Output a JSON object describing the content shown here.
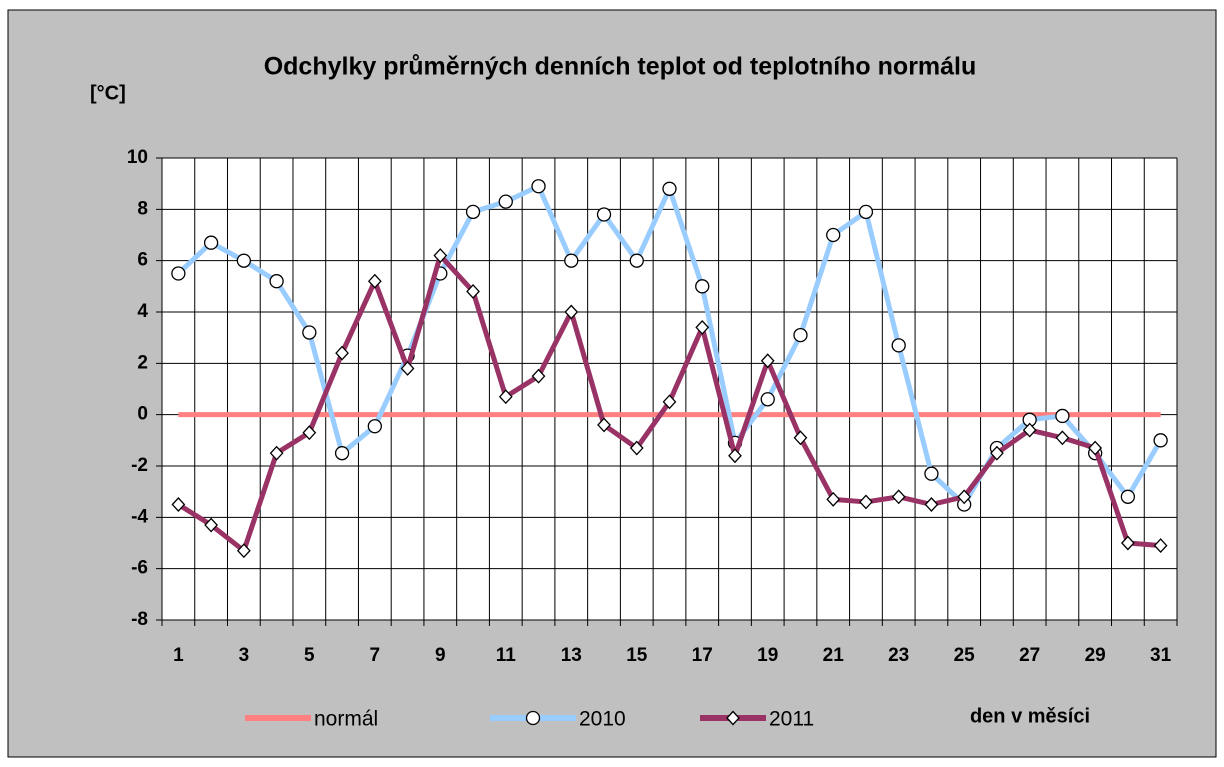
{
  "chart_data": {
    "type": "line",
    "title": "Odchylky průměrných denních teplot od teplotního normálu",
    "y_label": "[°C]",
    "x_label": "den v měsíci",
    "categories": [
      1,
      null,
      3,
      null,
      5,
      null,
      7,
      null,
      9,
      null,
      11,
      null,
      13,
      null,
      15,
      null,
      17,
      null,
      19,
      null,
      21,
      null,
      23,
      null,
      25,
      null,
      27,
      null,
      29,
      null,
      31
    ],
    "series": [
      {
        "name": "normál",
        "color": "#ff8080",
        "marker": null,
        "values": [
          0,
          0,
          0,
          0,
          0,
          0,
          0,
          0,
          0,
          0,
          0,
          0,
          0,
          0,
          0,
          0,
          0,
          0,
          0,
          0,
          0,
          0,
          0,
          0,
          0,
          0,
          0,
          0,
          0,
          0,
          0
        ]
      },
      {
        "name": "2010",
        "color": "#99ccff",
        "marker": "circle",
        "values": [
          5.5,
          6.7,
          6.0,
          5.2,
          3.2,
          -1.5,
          -0.45,
          2.3,
          5.5,
          7.9,
          8.3,
          8.9,
          6.0,
          7.8,
          6.0,
          8.8,
          5.0,
          -1.1,
          0.6,
          3.1,
          7.0,
          7.9,
          2.7,
          -2.3,
          -3.5,
          -1.3,
          -0.2,
          -0.05,
          -1.5,
          -3.2,
          -1.0
        ]
      },
      {
        "name": "2011",
        "color": "#993366",
        "marker": "diamond",
        "values": [
          -3.5,
          -4.3,
          -5.3,
          -1.5,
          -0.7,
          2.4,
          5.2,
          1.8,
          6.2,
          4.8,
          0.7,
          1.5,
          4.0,
          -0.4,
          -1.3,
          0.5,
          3.4,
          -1.6,
          2.1,
          -0.9,
          -3.3,
          -3.4,
          -3.2,
          -3.5,
          -3.2,
          -1.5,
          -0.6,
          -0.9,
          -1.3,
          -5.0,
          -5.1
        ]
      }
    ],
    "ylim": [
      -8,
      10
    ],
    "yticks": [
      -8,
      -6,
      -4,
      -2,
      0,
      2,
      4,
      6,
      8,
      10
    ],
    "grid": true,
    "legend": "bottom"
  }
}
